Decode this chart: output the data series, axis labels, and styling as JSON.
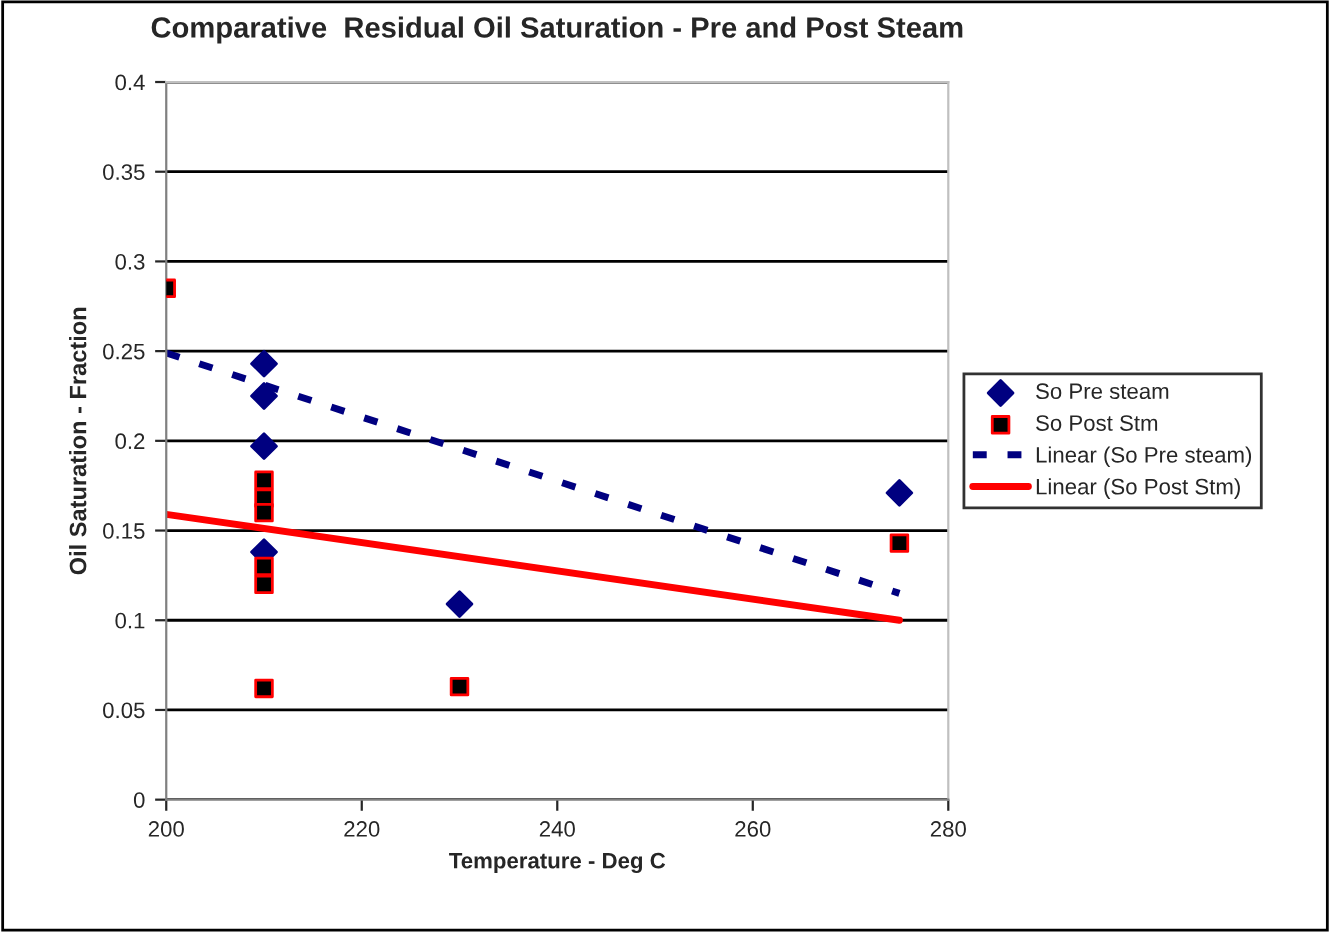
{
  "chart_data": {
    "type": "scatter",
    "title": "Comparative  Residual Oil Saturation - Pre and Post Steam",
    "xlabel": "Temperature - Deg C",
    "ylabel": "Oil Saturation - Fraction",
    "xlim": [
      200,
      280
    ],
    "xticks": [
      200,
      220,
      240,
      260,
      280
    ],
    "ylim": [
      0,
      0.4
    ],
    "yticks": [
      0,
      0.05,
      0.1,
      0.15,
      0.2,
      0.25,
      0.3,
      0.35,
      0.4
    ],
    "grid": "y",
    "legend": "right",
    "series": [
      {
        "name": "So Pre steam",
        "marker": "diamond",
        "color": "#000080",
        "x": [
          210,
          210,
          210,
          210,
          230,
          275
        ],
        "values": [
          0.243,
          0.225,
          0.197,
          0.138,
          0.109,
          0.171
        ]
      },
      {
        "name": "So Post Stm",
        "marker": "square",
        "color": "#000000",
        "x": [
          200,
          210,
          210,
          210,
          210,
          210,
          210,
          230,
          275
        ],
        "values": [
          0.285,
          0.178,
          0.168,
          0.16,
          0.13,
          0.12,
          0.062,
          0.063,
          0.143
        ]
      },
      {
        "name": "Linear (So Pre steam)",
        "type": "line",
        "line_style": "dashed",
        "color": "#000080",
        "x": [
          200,
          275
        ],
        "values": [
          0.249,
          0.115
        ]
      },
      {
        "name": "Linear (So Post Stm)",
        "type": "line",
        "line_style": "solid",
        "color": "#ff0000",
        "x": [
          200,
          275
        ],
        "values": [
          0.159,
          0.1
        ]
      }
    ]
  }
}
